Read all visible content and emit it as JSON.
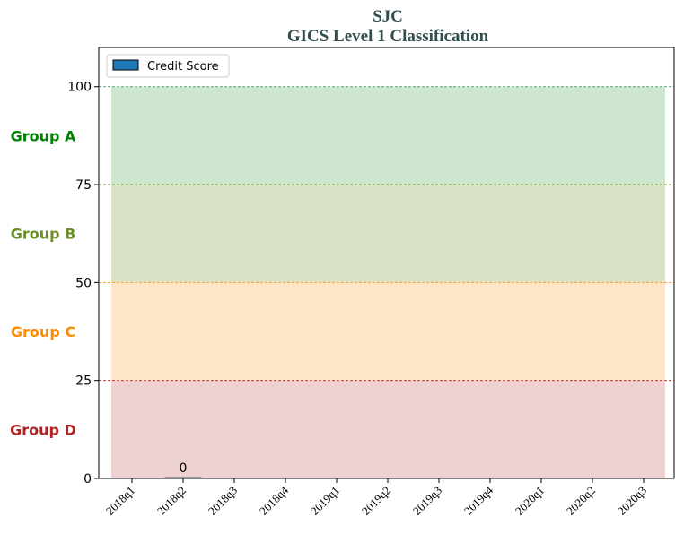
{
  "chart_data": {
    "type": "bar",
    "title": "SJC",
    "subtitle": "GICS Level 1 Classification",
    "categories": [
      "2018q1",
      "2018q2",
      "2018q3",
      "2018q4",
      "2019q1",
      "2019q2",
      "2019q3",
      "2019q4",
      "2020q1",
      "2020q2",
      "2020q3"
    ],
    "series": [
      {
        "name": "Credit Score",
        "color": "#1f77b4",
        "values": [
          null,
          0,
          null,
          null,
          null,
          null,
          null,
          null,
          null,
          null,
          null
        ]
      }
    ],
    "data_labels": [
      {
        "category": "2018q2",
        "text": "0"
      }
    ],
    "ylim": [
      0,
      110
    ],
    "yticks": [
      0,
      25,
      50,
      75,
      100
    ],
    "legend": {
      "position": "top-left",
      "entries": [
        "Credit Score"
      ]
    },
    "bands": [
      {
        "label": "Group A",
        "from": 75,
        "to": 100,
        "fill": "#cde6cd",
        "label_color": "#008000",
        "line_color": "#2e8b57"
      },
      {
        "label": "Group B",
        "from": 50,
        "to": 75,
        "fill": "#d8e2c6",
        "label_color": "#6b8e23",
        "line_color": "#6b8e23"
      },
      {
        "label": "Group C",
        "from": 25,
        "to": 50,
        "fill": "#ffe6c8",
        "label_color": "#ff8c00",
        "line_color": "#ff8c00"
      },
      {
        "label": "Group D",
        "from": 0,
        "to": 25,
        "fill": "#eed2d2",
        "label_color": "#b22222",
        "line_color": "#b22222"
      }
    ]
  }
}
